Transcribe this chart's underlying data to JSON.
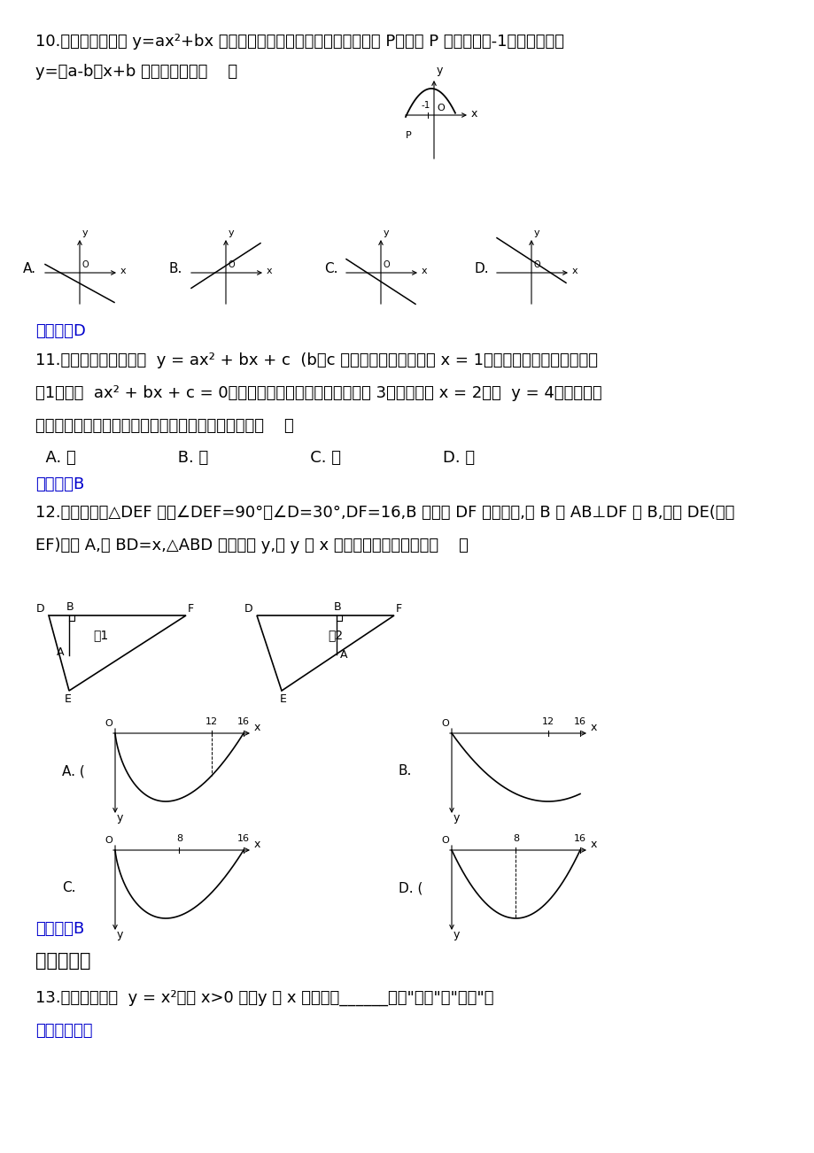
{
  "bg_color": "#ffffff",
  "text_color": "#000000",
  "answer_color": "#0000cc",
  "q10_line1": "10.如图，二次函数 y=ax²+bx 的图象开口向下，且经过第三象限的点 P．若点 P 的横坐标为-1，则一次函数",
  "q10_line2": "y=（a-b）x+b 的图象大致是（    ）",
  "q10_answer": "【答案】D",
  "q11_line1": "11.四位同学在研究函数  y = ax² + bx + c  (b，c 是常数）时，甲发现当 x = 1时，函数有最小值；乙发现",
  "q11_line2": "－1是方程  ax² + bx + c = 0的一个根；丙发现函数的最小值为 3；丁发现当 x = 2时，  y = 4．已知这四",
  "q11_line3": "位同学中只有一位发现的结论是错误的，则该同学是（    ）",
  "q11_options": "  A. 甲                    B. 乙                    C. 丙                    D. 丁",
  "q11_answer": "【答案】B",
  "q12_line1": "12.如图所示，△DEF 中，∠DEF=90°，∠D=30°,DF=16,B 是斜边 DF 上一动点,过 B 作 AB⊥DF 于 B,交边 DE(或边",
  "q12_line2": "EF)于点 A,设 BD=x,△ABD 的面积为 y,则 y 与 x 之间的函数图象大致为（    ）",
  "q12_answer": "【答案】B",
  "q13_section": "二、填空题",
  "q13_line1": "13.已知二次函数  y = x²，当 x>0 时，y 随 x 的增大而______（填\"增大\"或\"减小\"）",
  "q13_answer": "【答案】增大"
}
